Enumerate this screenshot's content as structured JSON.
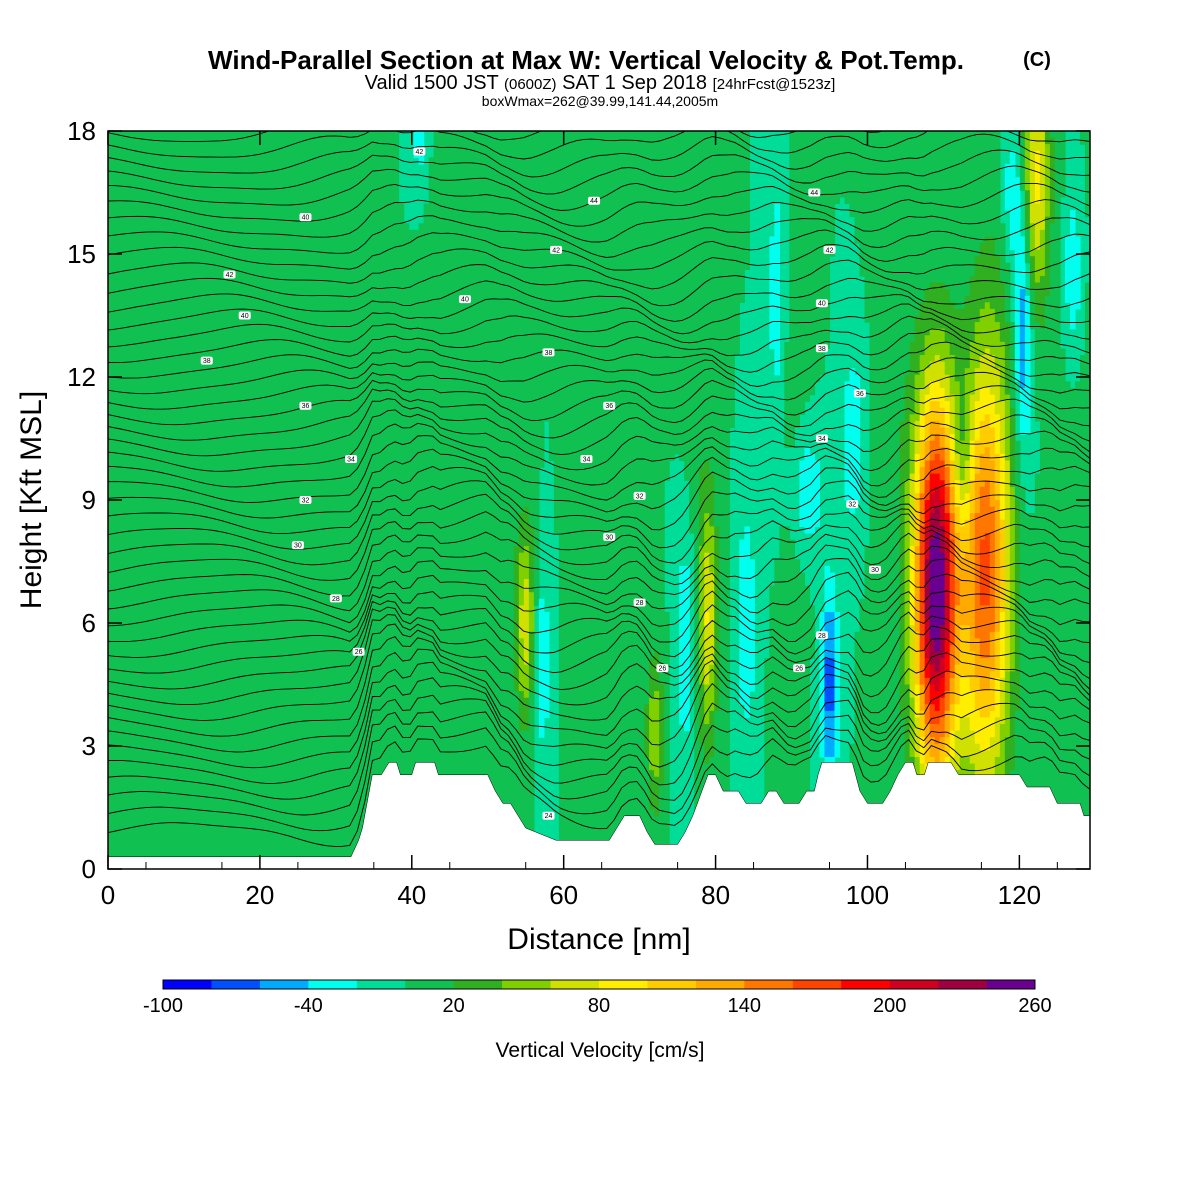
{
  "chart_data": {
    "type": "heatmap",
    "title": "Wind-Parallel Section at Max W: Vertical Velocity & Pot.Temp.",
    "title_mark": "(C)",
    "subtitle_parts": [
      "Valid 1500 JST",
      "(0600Z)",
      "SAT 1 Sep 2018",
      "[24hrFcst@1523z]"
    ],
    "info_line": "boxWmax=262@39.99,141.44,2005m",
    "xlabel": "Distance [nm]",
    "ylabel": "Height [Kft MSL]",
    "xlim": [
      0,
      129.3
    ],
    "ylim": [
      0,
      18
    ],
    "x_ticks": [
      0,
      20,
      40,
      60,
      80,
      100,
      120
    ],
    "y_ticks": [
      0,
      3,
      6,
      9,
      12,
      15,
      18
    ],
    "colorbar": {
      "label": "Vertical Velocity [cm/s]",
      "min": -100,
      "max": 260,
      "tick_values": [
        -100,
        -40,
        20,
        80,
        140,
        200,
        260
      ],
      "colors": [
        "#0000ff",
        "#0050ff",
        "#00aaff",
        "#00ffee",
        "#00dd99",
        "#10c050",
        "#30b020",
        "#80d000",
        "#d0e000",
        "#ffee00",
        "#ffcc00",
        "#ffaa00",
        "#ff7700",
        "#ff4400",
        "#ff0000",
        "#d00020",
        "#a00040",
        "#6a0090"
      ]
    },
    "terrain_profile": [
      [
        0,
        0.3
      ],
      [
        32,
        0.3
      ],
      [
        33,
        0.7
      ],
      [
        33.5,
        1.0
      ],
      [
        34,
        1.5
      ],
      [
        34.8,
        2.3
      ],
      [
        36,
        2.3
      ],
      [
        37,
        2.6
      ],
      [
        38,
        2.6
      ],
      [
        38.5,
        2.3
      ],
      [
        40,
        2.3
      ],
      [
        40.5,
        2.6
      ],
      [
        43,
        2.6
      ],
      [
        43.5,
        2.3
      ],
      [
        50,
        2.3
      ],
      [
        51,
        1.9
      ],
      [
        52,
        1.6
      ],
      [
        53,
        1.6
      ],
      [
        54,
        1.3
      ],
      [
        55,
        1.0
      ],
      [
        59,
        0.7
      ],
      [
        64,
        0.7
      ],
      [
        66,
        0.7
      ],
      [
        67,
        1.0
      ],
      [
        68,
        1.3
      ],
      [
        70,
        1.3
      ],
      [
        71,
        0.9
      ],
      [
        72,
        0.6
      ],
      [
        73,
        0.6
      ],
      [
        75,
        0.6
      ],
      [
        76,
        0.9
      ],
      [
        77,
        1.3
      ],
      [
        78,
        1.8
      ],
      [
        79,
        2.3
      ],
      [
        80,
        2.3
      ],
      [
        81,
        1.9
      ],
      [
        83,
        1.9
      ],
      [
        84,
        1.6
      ],
      [
        86,
        1.6
      ],
      [
        87,
        1.9
      ],
      [
        88,
        1.9
      ],
      [
        89,
        1.6
      ],
      [
        91,
        1.6
      ],
      [
        92,
        1.9
      ],
      [
        93,
        1.9
      ],
      [
        93.5,
        2.3
      ],
      [
        94,
        2.6
      ],
      [
        98,
        2.6
      ],
      [
        99,
        1.9
      ],
      [
        100,
        1.6
      ],
      [
        102,
        1.6
      ],
      [
        103,
        1.9
      ],
      [
        104,
        2.3
      ],
      [
        105,
        2.6
      ],
      [
        106,
        2.6
      ],
      [
        106.5,
        2.3
      ],
      [
        107.5,
        2.3
      ],
      [
        108,
        2.6
      ],
      [
        111,
        2.6
      ],
      [
        112,
        2.3
      ],
      [
        120,
        2.3
      ],
      [
        121,
        2.0
      ],
      [
        124,
        2.0
      ],
      [
        125,
        1.6
      ],
      [
        128,
        1.6
      ],
      [
        128.5,
        1.3
      ],
      [
        129.3,
        1.3
      ]
    ],
    "isentrope_labels": [
      {
        "text": "42",
        "x": 41,
        "y": 17.5
      },
      {
        "text": "40",
        "x": 26,
        "y": 15.9
      },
      {
        "text": "42",
        "x": 16,
        "y": 14.5
      },
      {
        "text": "40",
        "x": 18,
        "y": 13.5
      },
      {
        "text": "38",
        "x": 13,
        "y": 12.4
      },
      {
        "text": "40",
        "x": 47,
        "y": 13.9
      },
      {
        "text": "36",
        "x": 26,
        "y": 11.3
      },
      {
        "text": "34",
        "x": 32,
        "y": 10.0
      },
      {
        "text": "32",
        "x": 26,
        "y": 9.0
      },
      {
        "text": "30",
        "x": 25,
        "y": 7.9
      },
      {
        "text": "28",
        "x": 30,
        "y": 6.6
      },
      {
        "text": "26",
        "x": 33,
        "y": 5.3
      },
      {
        "text": "44",
        "x": 64,
        "y": 16.3
      },
      {
        "text": "42",
        "x": 59,
        "y": 15.1
      },
      {
        "text": "38",
        "x": 58,
        "y": 12.6
      },
      {
        "text": "36",
        "x": 66,
        "y": 11.3
      },
      {
        "text": "34",
        "x": 63,
        "y": 10.0
      },
      {
        "text": "32",
        "x": 70,
        "y": 9.1
      },
      {
        "text": "30",
        "x": 66,
        "y": 8.1
      },
      {
        "text": "28",
        "x": 70,
        "y": 6.5
      },
      {
        "text": "26",
        "x": 73,
        "y": 4.9
      },
      {
        "text": "24",
        "x": 58,
        "y": 1.3
      },
      {
        "text": "44",
        "x": 93,
        "y": 16.5
      },
      {
        "text": "42",
        "x": 95,
        "y": 15.1
      },
      {
        "text": "40",
        "x": 94,
        "y": 13.8
      },
      {
        "text": "38",
        "x": 94,
        "y": 12.7
      },
      {
        "text": "36",
        "x": 99,
        "y": 11.6
      },
      {
        "text": "34",
        "x": 94,
        "y": 10.5
      },
      {
        "text": "32",
        "x": 98,
        "y": 8.9
      },
      {
        "text": "30",
        "x": 101,
        "y": 7.3
      },
      {
        "text": "28",
        "x": 94,
        "y": 5.7
      },
      {
        "text": "26",
        "x": 91,
        "y": 4.9
      }
    ],
    "w_cells": [
      {
        "x": 109,
        "y": 6.8,
        "w": 2.0,
        "h": 3.3,
        "peak": 262
      },
      {
        "x": 115.5,
        "y": 7.2,
        "w": 2.3,
        "h": 3.6,
        "peak": 160
      },
      {
        "x": 122,
        "y": 16.8,
        "w": 1.4,
        "h": 2.3,
        "peak": 90
      },
      {
        "x": 55,
        "y": 6.0,
        "w": 0.9,
        "h": 1.7,
        "peak": 75
      },
      {
        "x": 79,
        "y": 6.0,
        "w": 0.9,
        "h": 2.0,
        "peak": 75
      },
      {
        "x": 72,
        "y": 3.3,
        "w": 0.8,
        "h": 1.4,
        "peak": 55
      },
      {
        "x": 41,
        "y": 17.7,
        "w": 0.6,
        "h": 0.6,
        "peak": -30
      },
      {
        "x": 95,
        "y": 4.5,
        "w": 0.8,
        "h": 1.8,
        "peak": -70
      },
      {
        "x": 120.5,
        "y": 13.5,
        "w": 0.9,
        "h": 2.5,
        "peak": -70
      },
      {
        "x": 57,
        "y": 5.0,
        "w": 0.9,
        "h": 1.6,
        "peak": -40
      },
      {
        "x": 76,
        "y": 5.5,
        "w": 0.9,
        "h": 2.0,
        "peak": -40
      },
      {
        "x": 84,
        "y": 6.0,
        "w": 0.9,
        "h": 2.0,
        "peak": -40
      },
      {
        "x": 92,
        "y": 9.2,
        "w": 1.5,
        "h": 1.0,
        "peak": -40
      },
      {
        "x": 98,
        "y": 10.5,
        "w": 1.0,
        "h": 1.5,
        "peak": -40
      },
      {
        "x": 112.5,
        "y": 10.0,
        "w": 0.9,
        "h": 1.2,
        "peak": -40
      },
      {
        "x": 119,
        "y": 16.5,
        "w": 1.0,
        "h": 1.3,
        "peak": -40
      },
      {
        "x": 127,
        "y": 14.5,
        "w": 0.8,
        "h": 1.5,
        "peak": -40
      },
      {
        "x": 88,
        "y": 14.0,
        "w": 0.9,
        "h": 3.0,
        "peak": -30
      }
    ],
    "w_streaks": [
      {
        "x": 4,
        "y": 9,
        "w": 3.5,
        "h": 4.5,
        "peak": 8
      },
      {
        "x": 26,
        "y": 5,
        "w": 3.5,
        "h": 3.5,
        "peak": 10
      },
      {
        "x": 18,
        "y": 3.5,
        "w": 2.0,
        "h": 3.0,
        "peak": 8
      },
      {
        "x": 30,
        "y": 13,
        "w": 1.5,
        "h": 4.0,
        "peak": 8
      },
      {
        "x": 45,
        "y": 11,
        "w": 1.5,
        "h": 5.0,
        "peak": 8
      },
      {
        "x": 52,
        "y": 9,
        "w": 1.3,
        "h": 5.0,
        "peak": 10
      },
      {
        "x": 62,
        "y": 11,
        "w": 1.2,
        "h": 5.0,
        "peak": 10
      },
      {
        "x": 68,
        "y": 10,
        "w": 1.2,
        "h": 5.0,
        "peak": 10
      },
      {
        "x": 78,
        "y": 11,
        "w": 1.5,
        "h": 5.5,
        "peak": 12
      },
      {
        "x": 90,
        "y": 11,
        "w": 1.5,
        "h": 5.0,
        "peak": 10
      },
      {
        "x": 104,
        "y": 10,
        "w": 2.0,
        "h": 6.0,
        "peak": 10
      },
      {
        "x": 117,
        "y": 13,
        "w": 2.0,
        "h": 5.0,
        "peak": 12
      },
      {
        "x": 127,
        "y": 8,
        "w": 1.5,
        "h": 5.0,
        "peak": 10
      }
    ]
  }
}
